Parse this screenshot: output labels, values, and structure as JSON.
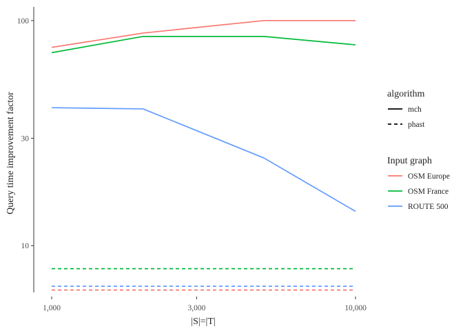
{
  "chart_data": {
    "type": "line",
    "title": "",
    "xlabel": "|S|=|T|",
    "ylabel": "Query time improvement factor",
    "x_scale": "log10",
    "y_scale": "log10",
    "xlim": [
      1000,
      10000
    ],
    "ylim": [
      6.2,
      115
    ],
    "x_ticks": [
      1000,
      3000,
      10000
    ],
    "x_tick_labels": [
      "1,000",
      "3,000",
      "10,000"
    ],
    "y_ticks": [
      10,
      30,
      100
    ],
    "y_tick_labels": [
      "10",
      "30",
      "100"
    ],
    "grid": false,
    "x": [
      1000,
      2000,
      5000,
      10000
    ],
    "series": [
      {
        "algorithm": "mch",
        "graph": "OSM Europe",
        "color": "#F8766D",
        "dash": "solid",
        "values": [
          76,
          88,
          100,
          100
        ]
      },
      {
        "algorithm": "mch",
        "graph": "OSM France",
        "color": "#00BA38",
        "dash": "solid",
        "values": [
          72,
          85,
          85,
          78
        ]
      },
      {
        "algorithm": "mch",
        "graph": "ROUTE 500",
        "color": "#619CFF",
        "dash": "solid",
        "values": [
          41,
          40.5,
          24.5,
          14.2
        ]
      },
      {
        "algorithm": "phast",
        "graph": "OSM France",
        "color": "#00BA38",
        "dash": "dashed",
        "values": [
          7.9,
          7.9,
          7.9,
          7.9
        ]
      },
      {
        "algorithm": "phast",
        "graph": "ROUTE 500",
        "color": "#619CFF",
        "dash": "dashed",
        "values": [
          6.6,
          6.6,
          6.6,
          6.6
        ]
      },
      {
        "algorithm": "phast",
        "graph": "OSM Europe",
        "color": "#F8766D",
        "dash": "dashed",
        "values": [
          6.35,
          6.35,
          6.35,
          6.35
        ]
      }
    ],
    "legend_placement": "right",
    "legends": [
      {
        "title": "algorithm",
        "entries": [
          {
            "label": "mch",
            "dash": "solid",
            "color": "#000000"
          },
          {
            "label": "phast",
            "dash": "dashed",
            "color": "#000000"
          }
        ]
      },
      {
        "title": "Input graph",
        "entries": [
          {
            "label": "OSM Europe",
            "dash": "solid",
            "color": "#F8766D"
          },
          {
            "label": "OSM France",
            "dash": "solid",
            "color": "#00BA38"
          },
          {
            "label": "ROUTE 500",
            "dash": "solid",
            "color": "#619CFF"
          }
        ]
      }
    ]
  }
}
